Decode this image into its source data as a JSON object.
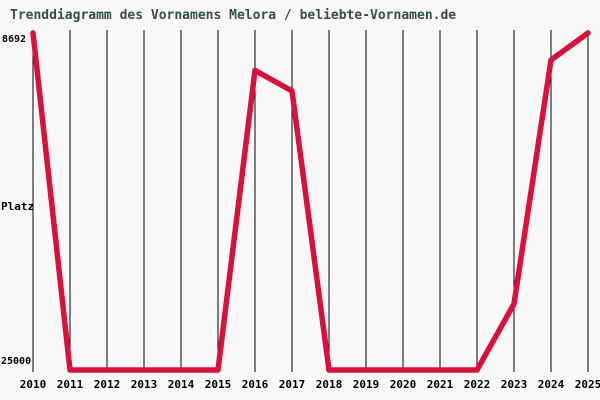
{
  "title": "Trenddiagramm des Vornamens Melora / beliebte-Vornamen.de",
  "y_axis": {
    "top_label": "8692",
    "axis_label": "Platz",
    "bottom_label": "25000"
  },
  "chart_data": {
    "type": "line",
    "title": "Trenddiagramm des Vornamens Melora / beliebte-Vornamen.de",
    "xlabel": "",
    "ylabel": "Platz",
    "x": [
      2010,
      2011,
      2012,
      2013,
      2014,
      2015,
      2016,
      2017,
      2018,
      2019,
      2020,
      2021,
      2022,
      2023,
      2024,
      2025
    ],
    "values": [
      8692,
      25000,
      25000,
      25000,
      25000,
      25000,
      10500,
      11500,
      25000,
      25000,
      25000,
      25000,
      25000,
      21800,
      10000,
      8692
    ],
    "ylim": [
      8692,
      25000
    ],
    "y_axis_inverted": true,
    "y_tick_labels": [
      "8692",
      "25000"
    ],
    "grid": "vertical-only",
    "legend": "none",
    "line_color": "#d8113c",
    "grid_color": "#000000",
    "background_color": "#f8f8f8",
    "title_color": "#2f4f4f"
  }
}
